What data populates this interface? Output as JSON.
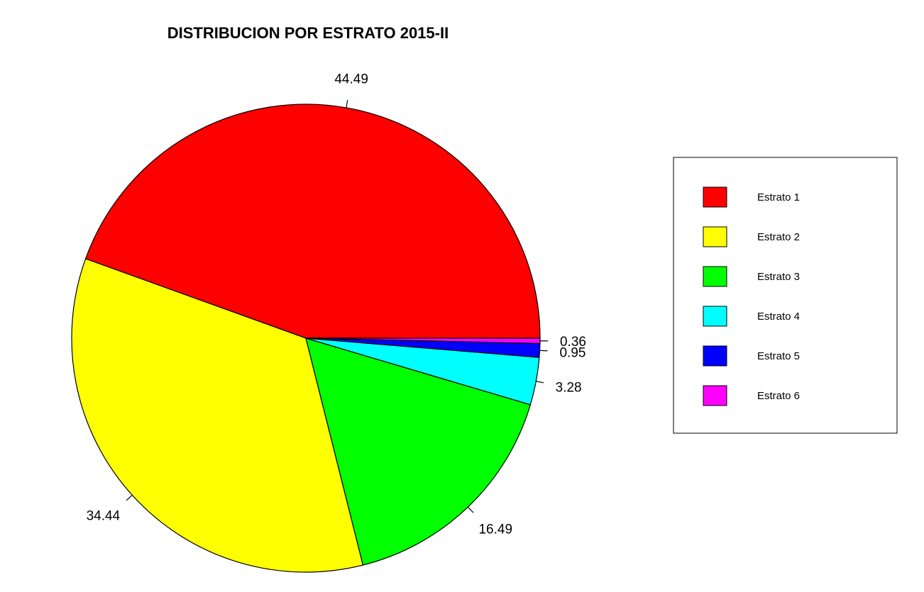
{
  "chart_data": {
    "type": "pie",
    "title": "DISTRIBUCION POR ESTRATO 2015-II",
    "start_angle_deg": 0,
    "direction": "counterclockwise",
    "legend_position": "right",
    "slices": [
      {
        "label": "Estrato 1",
        "value": 44.49,
        "value_label": "44.49",
        "color": "#ff0000"
      },
      {
        "label": "Estrato 2",
        "value": 34.44,
        "value_label": "34.44",
        "color": "#ffff00"
      },
      {
        "label": "Estrato 3",
        "value": 16.49,
        "value_label": "16.49",
        "color": "#00ff00"
      },
      {
        "label": "Estrato 4",
        "value": 3.28,
        "value_label": "3.28",
        "color": "#00ffff"
      },
      {
        "label": "Estrato 5",
        "value": 0.95,
        "value_label": "0.95",
        "color": "#0000ff"
      },
      {
        "label": "Estrato 6",
        "value": 0.36,
        "value_label": "0.36",
        "color": "#ff00ff"
      }
    ]
  }
}
